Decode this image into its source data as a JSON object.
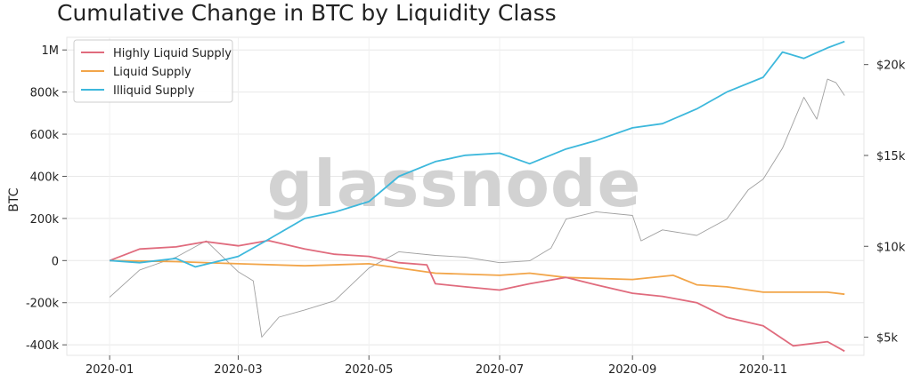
{
  "chart_data": {
    "type": "line",
    "title": "Cumulative Change in BTC by Liquidity Class",
    "ylabel": "BTC",
    "ylim": [
      -450000,
      1060000
    ],
    "y2lim": [
      4000,
      21500
    ],
    "y_ticks": [
      {
        "value": 1000000,
        "label": "1M"
      },
      {
        "value": 800000,
        "label": "800k"
      },
      {
        "value": 600000,
        "label": "600k"
      },
      {
        "value": 400000,
        "label": "400k"
      },
      {
        "value": 200000,
        "label": "200k"
      },
      {
        "value": 0,
        "label": "0"
      },
      {
        "value": -200000,
        "label": "-200k"
      },
      {
        "value": -400000,
        "label": "-400k"
      }
    ],
    "y2_ticks": [
      {
        "value": 20000,
        "label": "$20k"
      },
      {
        "value": 15000,
        "label": "$15k"
      },
      {
        "value": 10000,
        "label": "$10k"
      },
      {
        "value": 5000,
        "label": "$5k"
      }
    ],
    "x_ticks": [
      {
        "value": "2020-01",
        "label": "2020-01"
      },
      {
        "value": "2020-03",
        "label": "2020-03"
      },
      {
        "value": "2020-05",
        "label": "2020-05"
      },
      {
        "value": "2020-07",
        "label": "2020-07"
      },
      {
        "value": "2020-09",
        "label": "2020-09"
      },
      {
        "value": "2020-11",
        "label": "2020-11"
      }
    ],
    "xlim": [
      "2019-12-12",
      "2020-12-18"
    ],
    "grid": true,
    "legend_position": "top-left",
    "watermark": "glassnode",
    "series": [
      {
        "name": "Highly Liquid Supply",
        "color": "#e06b7d",
        "axis": "left",
        "points": [
          [
            "2020-01-01",
            0
          ],
          [
            "2020-01-15",
            55000
          ],
          [
            "2020-02-01",
            65000
          ],
          [
            "2020-02-15",
            90000
          ],
          [
            "2020-03-01",
            70000
          ],
          [
            "2020-03-15",
            95000
          ],
          [
            "2020-04-01",
            55000
          ],
          [
            "2020-04-15",
            30000
          ],
          [
            "2020-05-01",
            20000
          ],
          [
            "2020-05-15",
            -10000
          ],
          [
            "2020-05-28",
            -20000
          ],
          [
            "2020-06-01",
            -110000
          ],
          [
            "2020-06-15",
            -125000
          ],
          [
            "2020-07-01",
            -140000
          ],
          [
            "2020-07-15",
            -110000
          ],
          [
            "2020-08-01",
            -80000
          ],
          [
            "2020-08-15",
            -115000
          ],
          [
            "2020-09-01",
            -155000
          ],
          [
            "2020-09-15",
            -170000
          ],
          [
            "2020-10-01",
            -200000
          ],
          [
            "2020-10-15",
            -270000
          ],
          [
            "2020-11-01",
            -310000
          ],
          [
            "2020-11-15",
            -405000
          ],
          [
            "2020-12-01",
            -385000
          ],
          [
            "2020-12-09",
            -430000
          ]
        ]
      },
      {
        "name": "Liquid Supply",
        "color": "#f2a549",
        "axis": "left",
        "points": [
          [
            "2020-01-01",
            0
          ],
          [
            "2020-02-01",
            -5000
          ],
          [
            "2020-03-01",
            -15000
          ],
          [
            "2020-04-01",
            -25000
          ],
          [
            "2020-05-01",
            -15000
          ],
          [
            "2020-06-01",
            -60000
          ],
          [
            "2020-07-01",
            -70000
          ],
          [
            "2020-07-15",
            -60000
          ],
          [
            "2020-08-01",
            -80000
          ],
          [
            "2020-09-01",
            -90000
          ],
          [
            "2020-09-20",
            -70000
          ],
          [
            "2020-10-01",
            -115000
          ],
          [
            "2020-10-15",
            -125000
          ],
          [
            "2020-11-01",
            -150000
          ],
          [
            "2020-11-15",
            -150000
          ],
          [
            "2020-12-01",
            -150000
          ],
          [
            "2020-12-09",
            -160000
          ]
        ]
      },
      {
        "name": "Illiquid Supply",
        "color": "#3db8dc",
        "axis": "left",
        "points": [
          [
            "2020-01-01",
            0
          ],
          [
            "2020-01-15",
            -10000
          ],
          [
            "2020-02-01",
            10000
          ],
          [
            "2020-02-10",
            -30000
          ],
          [
            "2020-03-01",
            20000
          ],
          [
            "2020-03-15",
            100000
          ],
          [
            "2020-04-01",
            200000
          ],
          [
            "2020-04-15",
            230000
          ],
          [
            "2020-05-01",
            280000
          ],
          [
            "2020-05-15",
            400000
          ],
          [
            "2020-06-01",
            470000
          ],
          [
            "2020-06-15",
            500000
          ],
          [
            "2020-07-01",
            510000
          ],
          [
            "2020-07-15",
            460000
          ],
          [
            "2020-08-01",
            530000
          ],
          [
            "2020-08-15",
            570000
          ],
          [
            "2020-09-01",
            630000
          ],
          [
            "2020-09-15",
            650000
          ],
          [
            "2020-10-01",
            720000
          ],
          [
            "2020-10-15",
            800000
          ],
          [
            "2020-11-01",
            870000
          ],
          [
            "2020-11-10",
            990000
          ],
          [
            "2020-11-20",
            960000
          ],
          [
            "2020-12-01",
            1010000
          ],
          [
            "2020-12-09",
            1040000
          ]
        ]
      },
      {
        "name": "",
        "color": "#a0a0a0",
        "axis": "right",
        "points": [
          [
            "2020-01-01",
            7200
          ],
          [
            "2020-01-15",
            8700
          ],
          [
            "2020-02-01",
            9400
          ],
          [
            "2020-02-15",
            10300
          ],
          [
            "2020-03-01",
            8600
          ],
          [
            "2020-03-08",
            8100
          ],
          [
            "2020-03-12",
            5000
          ],
          [
            "2020-03-20",
            6100
          ],
          [
            "2020-04-01",
            6500
          ],
          [
            "2020-04-15",
            7000
          ],
          [
            "2020-05-01",
            8800
          ],
          [
            "2020-05-15",
            9700
          ],
          [
            "2020-06-01",
            9500
          ],
          [
            "2020-06-15",
            9400
          ],
          [
            "2020-07-01",
            9100
          ],
          [
            "2020-07-15",
            9200
          ],
          [
            "2020-07-25",
            9900
          ],
          [
            "2020-08-01",
            11500
          ],
          [
            "2020-08-15",
            11900
          ],
          [
            "2020-09-01",
            11700
          ],
          [
            "2020-09-05",
            10300
          ],
          [
            "2020-09-15",
            10900
          ],
          [
            "2020-10-01",
            10600
          ],
          [
            "2020-10-15",
            11500
          ],
          [
            "2020-10-25",
            13100
          ],
          [
            "2020-11-01",
            13700
          ],
          [
            "2020-11-10",
            15400
          ],
          [
            "2020-11-20",
            18200
          ],
          [
            "2020-11-26",
            17000
          ],
          [
            "2020-12-01",
            19200
          ],
          [
            "2020-12-05",
            19000
          ],
          [
            "2020-12-09",
            18300
          ]
        ]
      }
    ]
  }
}
